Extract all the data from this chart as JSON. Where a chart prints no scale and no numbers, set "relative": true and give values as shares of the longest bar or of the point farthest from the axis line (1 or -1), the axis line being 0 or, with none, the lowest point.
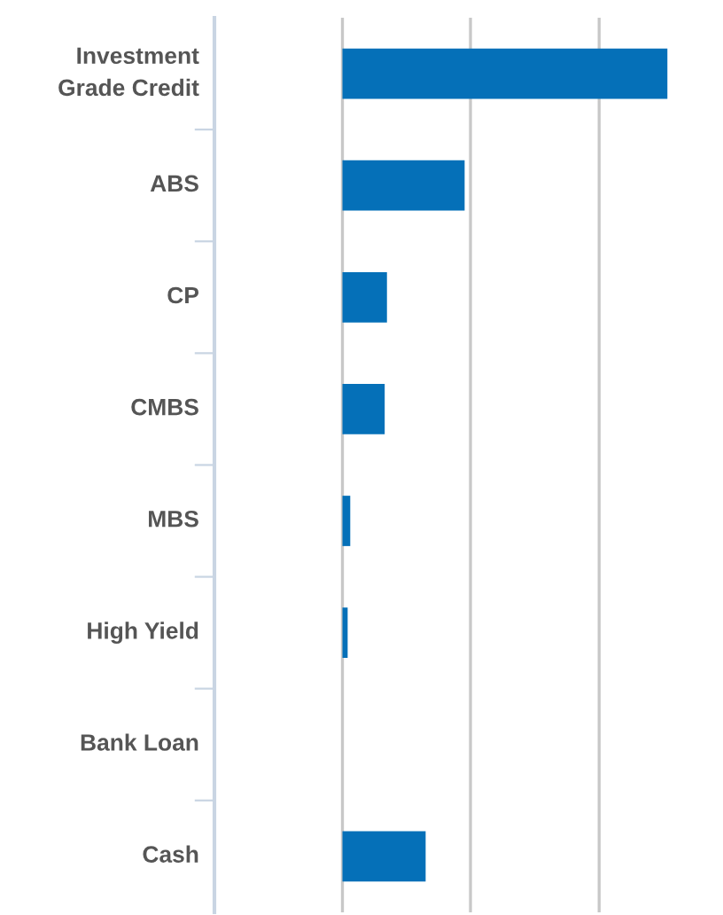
{
  "chart_data": {
    "type": "bar",
    "orientation": "horizontal",
    "relative": true,
    "ref_lines": [
      {
        "axis": "x",
        "value": 0,
        "color": "#c8c8c8"
      },
      {
        "axis": "x",
        "value": 0.394,
        "color": "#c8c8c8"
      },
      {
        "axis": "x",
        "value": 0.79,
        "color": "#c8c8c8"
      }
    ],
    "color": "#0570b8",
    "categories": [
      "Investment\nGrade Credit",
      "ABS",
      "CP",
      "CMBS",
      "MBS",
      "High Yield",
      "Bank Loan",
      "Cash"
    ],
    "values": [
      1,
      0.376,
      0.137,
      0.13,
      0.024,
      0.016,
      0,
      0.256
    ]
  }
}
